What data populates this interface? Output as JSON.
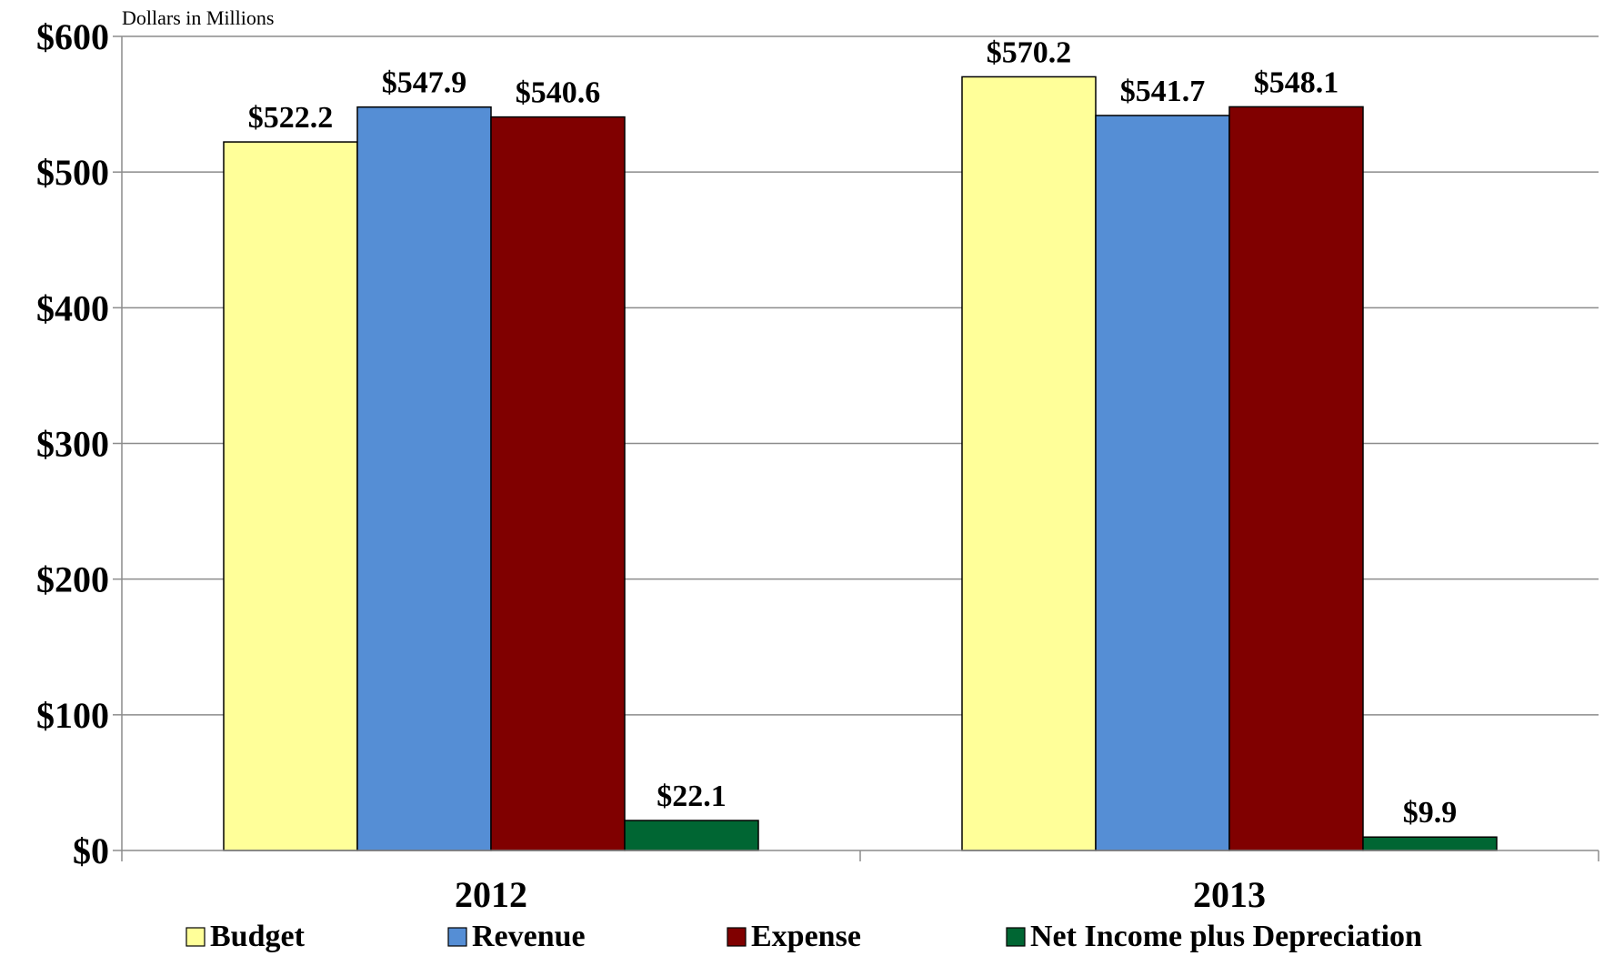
{
  "chart_data": {
    "type": "bar",
    "unit_label": "Dollars in Millions",
    "categories": [
      "2012",
      "2013"
    ],
    "series": [
      {
        "name": "Budget",
        "color": "#FFFF99",
        "values": [
          522.2,
          570.2
        ],
        "labels": [
          "$522.2",
          "$570.2"
        ]
      },
      {
        "name": "Revenue",
        "color": "#558ED5",
        "values": [
          547.9,
          541.7
        ],
        "labels": [
          "$547.9",
          "$541.7"
        ]
      },
      {
        "name": "Expense",
        "color": "#800000",
        "values": [
          540.6,
          548.1
        ],
        "labels": [
          "$540.6",
          "$548.1"
        ]
      },
      {
        "name": "Net Income plus Depreciation",
        "color": "#006633",
        "values": [
          22.1,
          9.9
        ],
        "labels": [
          "$22.1",
          "$9.9"
        ]
      }
    ],
    "ylim": [
      0,
      600
    ],
    "yticks": [
      0,
      100,
      200,
      300,
      400,
      500,
      600
    ],
    "ytick_labels": [
      "$0",
      "$100",
      "$200",
      "$300",
      "$400",
      "$500",
      "$600"
    ],
    "grid": true,
    "legend_position": "bottom"
  }
}
